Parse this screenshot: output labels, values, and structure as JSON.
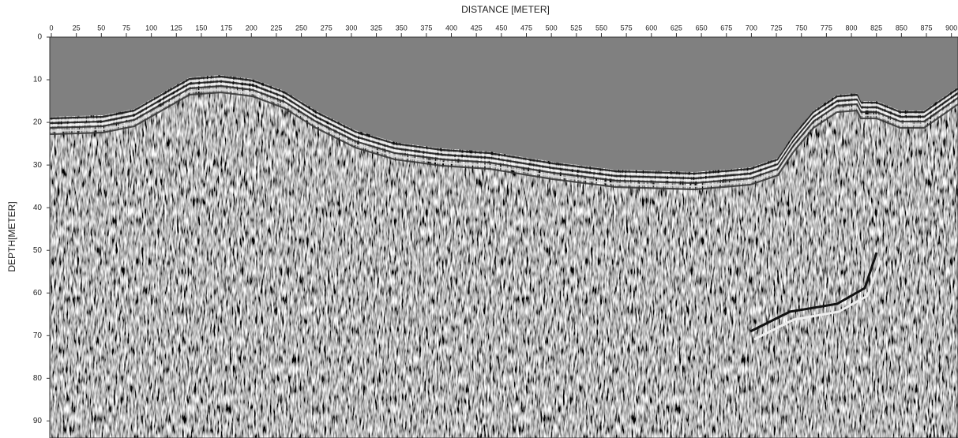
{
  "chart_data": {
    "type": "image",
    "x_label": "DISTANCE [METER]",
    "y_label": "DEPTH[METER]",
    "xlim": [
      0,
      905
    ],
    "ylim": [
      0,
      94
    ],
    "xticks": [
      0,
      25,
      50,
      75,
      100,
      125,
      150,
      175,
      200,
      225,
      250,
      275,
      300,
      325,
      350,
      375,
      400,
      425,
      450,
      475,
      500,
      525,
      550,
      575,
      600,
      625,
      650,
      675,
      700,
      725,
      750,
      775,
      800,
      825,
      850,
      875,
      900
    ],
    "yticks": [
      0,
      10,
      20,
      30,
      40,
      50,
      60,
      70,
      80,
      90
    ]
  }
}
